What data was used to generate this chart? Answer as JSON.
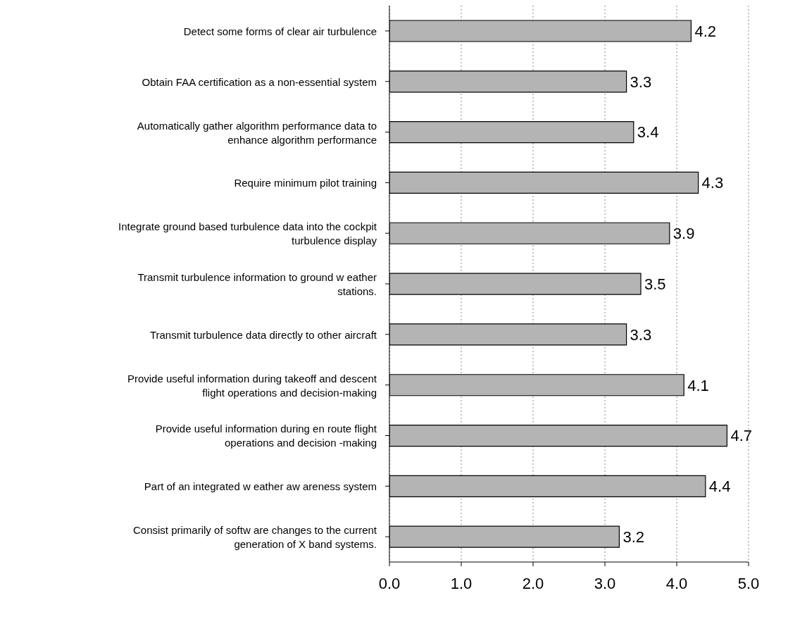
{
  "chart_data": {
    "type": "bar",
    "orientation": "horizontal",
    "categories": [
      "Detect some forms of clear air turbulence",
      "Obtain FAA certification as a non-essential system",
      "Automatically gather algorithm performance data to enhance algorithm performance",
      "Require minimum pilot training",
      "Integrate ground based turbulence data into the cockpit turbulence display",
      "Transmit turbulence information to ground w eather stations.",
      "Transmit turbulence data directly to other aircraft",
      "Provide useful information during takeoff and descent flight operations and decision-making",
      "Provide useful information during en route flight operations and decision -making",
      "Part of an integrated w eather aw areness system",
      "Consist primarily of softw are changes to the current generation of X band systems."
    ],
    "values": [
      4.2,
      3.3,
      3.4,
      4.3,
      3.9,
      3.5,
      3.3,
      4.1,
      4.7,
      4.4,
      3.2
    ],
    "color": "#b4b4b4",
    "xlim": [
      0,
      5
    ],
    "xticks": [
      {
        "value": 0,
        "label": "0.0"
      },
      {
        "value": 1,
        "label": "1.0"
      },
      {
        "value": 2,
        "label": "2.0"
      },
      {
        "value": 3,
        "label": "3.0"
      },
      {
        "value": 4,
        "label": "4.0"
      },
      {
        "value": 5,
        "label": "5.0"
      }
    ],
    "grid": "x",
    "data_labels": true
  }
}
